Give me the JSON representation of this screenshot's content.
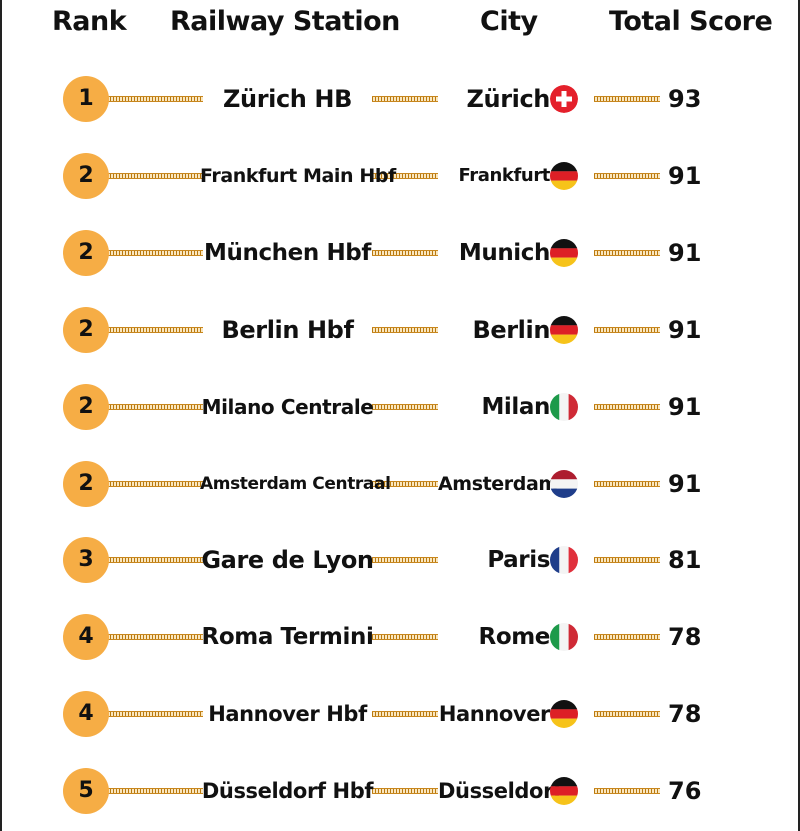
{
  "header": {
    "rank": "Rank",
    "station": "Railway Station",
    "city": "City",
    "score": "Total Score"
  },
  "rows": [
    {
      "rank": "1",
      "station": "Zürich HB",
      "city": "Zürich",
      "flag": "switzerland-flag-icon",
      "score": "93"
    },
    {
      "rank": "2",
      "station": "Frankfurt Main Hbf",
      "city": "Frankfurt",
      "flag": "germany-flag-icon",
      "score": "91"
    },
    {
      "rank": "2",
      "station": "München Hbf",
      "city": "Munich",
      "flag": "germany-flag-icon",
      "score": "91"
    },
    {
      "rank": "2",
      "station": "Berlin Hbf",
      "city": "Berlin",
      "flag": "germany-flag-icon",
      "score": "91"
    },
    {
      "rank": "2",
      "station": "Milano Centrale",
      "city": "Milan",
      "flag": "italy-flag-icon",
      "score": "91"
    },
    {
      "rank": "2",
      "station": "Amsterdam Centraal",
      "city": "Amsterdam",
      "flag": "netherlands-flag-icon",
      "score": "91"
    },
    {
      "rank": "3",
      "station": "Gare de Lyon",
      "city": "Paris",
      "flag": "france-flag-icon",
      "score": "81"
    },
    {
      "rank": "4",
      "station": "Roma Termini",
      "city": "Rome",
      "flag": "italy-flag-icon",
      "score": "78"
    },
    {
      "rank": "4",
      "station": "Hannover Hbf",
      "city": "Hannover",
      "flag": "germany-flag-icon",
      "score": "78"
    },
    {
      "rank": "5",
      "station": "Düsseldorf Hbf",
      "city": "Düsseldorf",
      "flag": "germany-flag-icon",
      "score": "76"
    }
  ],
  "colors": {
    "badge": "#f6ad45",
    "track": "#b8790f"
  }
}
